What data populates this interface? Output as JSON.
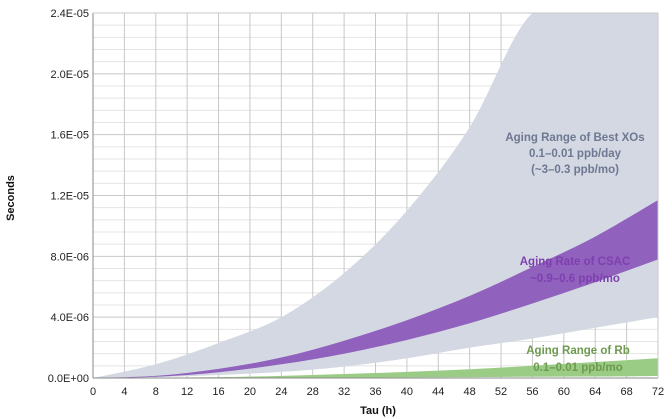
{
  "chart_data": {
    "type": "area",
    "xlabel": "Tau (h)",
    "ylabel": "Seconds",
    "xlim": [
      0,
      72
    ],
    "ylim": [
      0,
      2.4e-05
    ],
    "grid": true,
    "x_ticks": [
      "0",
      "4",
      "8",
      "12",
      "16",
      "20",
      "24",
      "28",
      "32",
      "36",
      "40",
      "44",
      "48",
      "52",
      "56",
      "60",
      "64",
      "68",
      "72"
    ],
    "y_ticks": [
      "0.0E+00",
      "4.0E-06",
      "8.0E-06",
      "1.2E-05",
      "1.6E-05",
      "2.0E-05",
      "2.4E-05"
    ],
    "series": [
      {
        "label_lines": [
          "Aging Range of Best XOs",
          "0.1–0.01 ppb/day",
          "(~3–0.3 ppb/mo)"
        ],
        "color": "#d3d8e2",
        "text_color": "#6e7891",
        "x": [
          0,
          8,
          16,
          24,
          32,
          40,
          48,
          56,
          64,
          72
        ],
        "upper": [
          0,
          9e-07,
          2.3e-06,
          4e-06,
          6.9e-06,
          1.1e-05,
          1.65e-05,
          2.4e-05,
          2.4e-05,
          2.4e-05
        ],
        "lower": [
          0,
          5e-08,
          2e-07,
          4e-07,
          7.5e-07,
          1.3e-06,
          2e-06,
          2.6e-06,
          3.3e-06,
          4e-06
        ]
      },
      {
        "label_lines": [
          "Aging Rate of CSAC",
          "~0.9–0.6 ppb/mo"
        ],
        "color": "#9061bd",
        "text_color": "#7e3fb0",
        "x": [
          0,
          8,
          16,
          24,
          32,
          40,
          48,
          56,
          64,
          72
        ],
        "upper": [
          0,
          1.4e-07,
          6e-07,
          1.35e-06,
          2.45e-06,
          3.8e-06,
          5.4e-06,
          7.3e-06,
          9.3e-06,
          1.17e-05
        ],
        "lower": [
          0,
          8e-08,
          3.8e-07,
          9e-07,
          1.6e-06,
          2.5e-06,
          3.6e-06,
          4.9e-06,
          6.3e-06,
          7.8e-06
        ]
      },
      {
        "label_lines": [
          "Aging Range of Rb",
          "0.1–0.01 ppb/mo"
        ],
        "color": "#9bcc86",
        "text_color": "#6e9a4f",
        "x": [
          0,
          8,
          16,
          24,
          32,
          40,
          48,
          56,
          64,
          72
        ],
        "upper": [
          0,
          1.5e-08,
          6e-08,
          1.4e-07,
          2.6e-07,
          4e-07,
          5.8e-07,
          8e-07,
          1.05e-06,
          1.3e-06
        ],
        "lower": [
          0,
          2e-09,
          6e-09,
          1.3e-08,
          2.4e-08,
          4e-08,
          6e-08,
          8e-08,
          1e-07,
          1.3e-07
        ]
      }
    ]
  }
}
